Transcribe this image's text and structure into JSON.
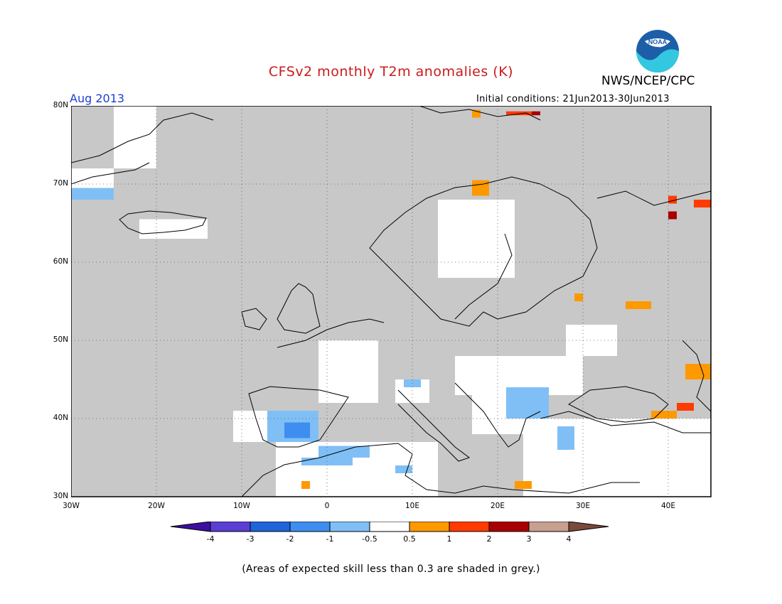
{
  "header": {
    "title": "CFSv2 monthly T2m anomalies (K)",
    "agency": "NWS/NCEP/CPC",
    "logo_text": "NOAA",
    "period": "Aug 2013",
    "initial_conditions": "Initial conditions: 21Jun2013-30Jun2013"
  },
  "map": {
    "region": "Europe",
    "lon_range": [
      -30,
      45
    ],
    "lat_range": [
      30,
      80
    ],
    "lat_labels": [
      "80N",
      "70N",
      "60N",
      "50N",
      "40N",
      "30N"
    ],
    "lon_labels": [
      "30W",
      "20W",
      "10W",
      "0",
      "10E",
      "20E",
      "30E",
      "40E"
    ],
    "skill_mask_color": "#c8c8c8",
    "anomaly_regions": [
      {
        "name": "Iberia",
        "value": -1
      },
      {
        "name": "Central Iberia",
        "value": -2
      },
      {
        "name": "North Algeria",
        "value": -1
      },
      {
        "name": "Balkans",
        "value": -1
      },
      {
        "name": "Western Turkey",
        "value": -1
      },
      {
        "name": "Northern Scandinavia",
        "value": 0.5
      },
      {
        "name": "Svalbard",
        "value": 1
      },
      {
        "name": "Caucasus",
        "value": 0.5
      },
      {
        "name": "Black Sea East",
        "value": 1
      },
      {
        "name": "Russia Northeast",
        "value": 2
      },
      {
        "name": "Greenland East",
        "value": -1
      }
    ]
  },
  "colorbar": {
    "tick_labels": [
      "-4",
      "-3",
      "-2",
      "-1",
      "-0.5",
      "0.5",
      "1",
      "2",
      "3",
      "4"
    ],
    "colors": [
      "#3d0f9e",
      "#5a3fd2",
      "#1f64d9",
      "#3d8ef0",
      "#80bff5",
      "#ffffff",
      "#ff9900",
      "#ff3b00",
      "#a80000",
      "#c8a090",
      "#7a4a3a"
    ]
  },
  "footnote": "(Areas of expected skill less than 0.3 are shaded in grey.)"
}
